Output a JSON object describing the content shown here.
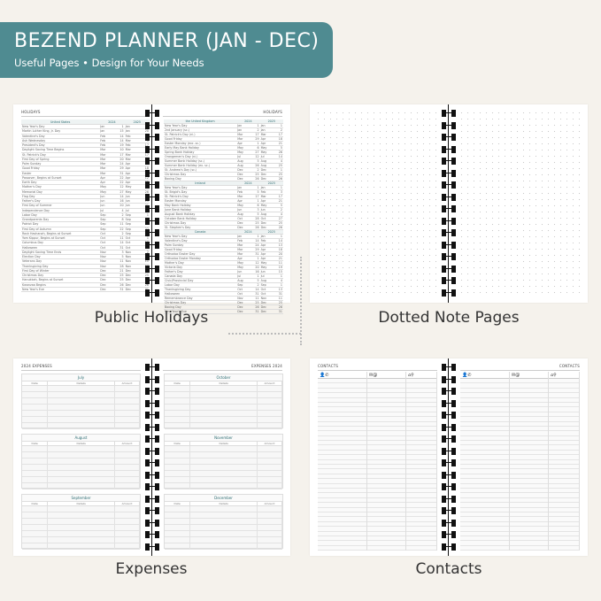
{
  "banner": {
    "title": "BEZEND PLANNER (JAN - DEC)",
    "subtitle": "Useful Pages  •  Design for Your Needs",
    "color": "#4f8b91"
  },
  "captions": {
    "holidays": "Public Holidays",
    "dotted": "Dotted Note Pages",
    "expenses": "Expenses",
    "contacts": "Contacts"
  },
  "holidays": {
    "left_title": "HOLIDAYS",
    "right_title": "HOLIDAYS",
    "years": [
      "2024",
      "2025"
    ],
    "left": [
      {
        "country": "United States",
        "rows": [
          [
            "New Year's Day",
            "Jan",
            "1",
            "Jan",
            "1"
          ],
          [
            "Martin Luther King, Jr. Day",
            "Jan",
            "15",
            "Jan",
            "20"
          ],
          [
            "Valentine's Day",
            "Feb",
            "14",
            "Feb",
            "14"
          ],
          [
            "Ash Wednesday",
            "Feb",
            "14",
            "Mar",
            "5"
          ],
          [
            "President's Day",
            "Feb",
            "19",
            "Feb",
            "17"
          ],
          [
            "Daylight Saving Time Begins",
            "Mar",
            "10",
            "Mar",
            "9"
          ],
          [
            "St. Patrick's Day",
            "Mar",
            "17",
            "Mar",
            "17"
          ],
          [
            "First Day of Spring",
            "Mar",
            "20",
            "Mar",
            "20"
          ],
          [
            "Palm Sunday",
            "Mar",
            "24",
            "Apr",
            "13"
          ],
          [
            "Good Friday",
            "Mar",
            "29",
            "Apr",
            "18"
          ],
          [
            "Easter",
            "Mar",
            "31",
            "Apr",
            "20"
          ],
          [
            "Passover, Begins at Sunset",
            "Apr",
            "22",
            "Apr",
            "12"
          ],
          [
            "Earth Day",
            "Apr",
            "22",
            "Apr",
            "22"
          ],
          [
            "Mother's Day",
            "May",
            "12",
            "May",
            "11"
          ],
          [
            "Memorial Day",
            "May",
            "27",
            "May",
            "26"
          ],
          [
            "Flag Day",
            "Jun",
            "14",
            "Jun",
            "14"
          ],
          [
            "Father's Day",
            "Jun",
            "16",
            "Jun",
            "15"
          ],
          [
            "First Day of Summer",
            "Jun",
            "20",
            "Jun",
            "21"
          ],
          [
            "Independence Day",
            "Jul",
            "4",
            "Jul",
            "4"
          ],
          [
            "Labor Day",
            "Sep",
            "2",
            "Sep",
            "1"
          ],
          [
            "Grandparents Day",
            "Sep",
            "8",
            "Sep",
            "7"
          ],
          [
            "Patriot Day",
            "Sep",
            "11",
            "Sep",
            "11"
          ],
          [
            "First Day of Autumn",
            "Sep",
            "22",
            "Sep",
            "22"
          ],
          [
            "Rosh Hashanah, Begins at Sunset",
            "Oct",
            "2",
            "Sep",
            "22"
          ],
          [
            "Yom Kippur, Begins at Sunset",
            "Oct",
            "11",
            "Oct",
            "1"
          ],
          [
            "Columbus Day",
            "Oct",
            "14",
            "Oct",
            "13"
          ],
          [
            "Halloween",
            "Oct",
            "31",
            "Oct",
            "31"
          ],
          [
            "Daylight Saving Time Ends",
            "Nov",
            "3",
            "Nov",
            "2"
          ],
          [
            "Election Day",
            "Nov",
            "5",
            "Nov",
            "4"
          ],
          [
            "Veterans Day",
            "Nov",
            "11",
            "Nov",
            "11"
          ],
          [
            "Thanksgiving Day",
            "Nov",
            "28",
            "Nov",
            "27"
          ],
          [
            "First Day of Winter",
            "Dec",
            "21",
            "Dec",
            "21"
          ],
          [
            "Christmas Day",
            "Dec",
            "25",
            "Dec",
            "25"
          ],
          [
            "Hanukkah, Begins at Sunset",
            "Dec",
            "25",
            "Dec",
            "14"
          ],
          [
            "Kwanzaa Begins",
            "Dec",
            "26",
            "Dec",
            "26"
          ],
          [
            "New Year's Eve",
            "Dec",
            "31",
            "Dec",
            "31"
          ]
        ]
      }
    ],
    "right": [
      {
        "country": "the United Kingdom",
        "rows": [
          [
            "New Year's Day",
            "Jan",
            "1",
            "Jan",
            "1"
          ],
          [
            "2nd January (sc.)",
            "Jan",
            "2",
            "Jan",
            "2"
          ],
          [
            "St. Patrick's Day (ni.)",
            "Mar",
            "17",
            "Mar",
            "17"
          ],
          [
            "Good Friday",
            "Mar",
            "29",
            "Apr",
            "18"
          ],
          [
            "Easter Monday (exc. sc.)",
            "Apr",
            "1",
            "Apr",
            "21"
          ],
          [
            "Early May Bank Holiday",
            "May",
            "6",
            "May",
            "5"
          ],
          [
            "Spring Bank Holiday",
            "May",
            "27",
            "May",
            "26"
          ],
          [
            "Orangemen's Day (ni.)",
            "Jul",
            "12",
            "Jul",
            "14"
          ],
          [
            "Summer Bank Holiday (sc.)",
            "Aug",
            "5",
            "Aug",
            "4"
          ],
          [
            "Summer Bank Holiday (ex. sc.)",
            "Aug",
            "26",
            "Aug",
            "25"
          ],
          [
            "St. Andrew's Day (sc.)",
            "Dec",
            "2",
            "Dec",
            "1"
          ],
          [
            "Christmas Day",
            "Dec",
            "25",
            "Dec",
            "25"
          ],
          [
            "Boxing Day",
            "Dec",
            "26",
            "Dec",
            "26"
          ]
        ]
      },
      {
        "country": "Ireland",
        "rows": [
          [
            "New Year's Day",
            "Jan",
            "1",
            "Jan",
            "1"
          ],
          [
            "St. Brigid's Day",
            "Feb",
            "5",
            "Feb",
            "3"
          ],
          [
            "St. Patrick's Day",
            "Mar",
            "17",
            "Mar",
            "17"
          ],
          [
            "Easter Monday",
            "Apr",
            "1",
            "Apr",
            "21"
          ],
          [
            "May Bank Holiday",
            "May",
            "6",
            "May",
            "5"
          ],
          [
            "June Bank Holiday",
            "Jun",
            "3",
            "Jun",
            "2"
          ],
          [
            "August Bank Holiday",
            "Aug",
            "5",
            "Aug",
            "4"
          ],
          [
            "October Bank Holiday",
            "Oct",
            "28",
            "Oct",
            "27"
          ],
          [
            "Christmas Day",
            "Dec",
            "25",
            "Dec",
            "25"
          ],
          [
            "St. Stephen's Day",
            "Dec",
            "26",
            "Dec",
            "26"
          ]
        ]
      },
      {
        "country": "Canada",
        "rows": [
          [
            "New Year's Day",
            "Jan",
            "1",
            "Jan",
            "1"
          ],
          [
            "Valentine's Day",
            "Feb",
            "14",
            "Feb",
            "14"
          ],
          [
            "Palm Sunday",
            "Mar",
            "24",
            "Apr",
            "13"
          ],
          [
            "Good Friday",
            "Mar",
            "29",
            "Apr",
            "18"
          ],
          [
            "Orthodox Easter Day",
            "Mar",
            "31",
            "Apr",
            "20"
          ],
          [
            "Orthodox Easter Monday",
            "Apr",
            "1",
            "Apr",
            "21"
          ],
          [
            "Mother's Day",
            "May",
            "12",
            "May",
            "11"
          ],
          [
            "Victoria Day",
            "May",
            "20",
            "May",
            "19"
          ],
          [
            "Father's Day",
            "Jun",
            "16",
            "Jun",
            "15"
          ],
          [
            "Canada Day",
            "Jul",
            "1",
            "Jul",
            "1"
          ],
          [
            "Civic/Provincial Day",
            "Aug",
            "5",
            "Aug",
            "4"
          ],
          [
            "Labor Day",
            "Sep",
            "2",
            "Sep",
            "1"
          ],
          [
            "Thanksgiving Day",
            "Oct",
            "14",
            "Oct",
            "13"
          ],
          [
            "Halloween",
            "Oct",
            "31",
            "Oct",
            "31"
          ],
          [
            "Remembrance Day",
            "Nov",
            "11",
            "Nov",
            "11"
          ],
          [
            "Christmas Day",
            "Dec",
            "25",
            "Dec",
            "25"
          ],
          [
            "Boxing Day",
            "Dec",
            "26",
            "Dec",
            "26"
          ],
          [
            "New Year's Eve",
            "Dec",
            "31",
            "Dec",
            "31"
          ]
        ]
      }
    ]
  },
  "expenses": {
    "left_title": "2024 EXPENSES",
    "right_title": "EXPENSES 2024",
    "columns": [
      "Date",
      "Details",
      "Amount"
    ],
    "left_months": [
      "July",
      "August",
      "September"
    ],
    "right_months": [
      "October",
      "November",
      "December"
    ]
  },
  "contacts": {
    "left_title": "CONTACTS",
    "right_title": "CONTACTS",
    "column_icons": [
      "person-phone-icon",
      "envelope-at-icon",
      "home-location-icon"
    ],
    "column_glyphs": [
      "👤✆",
      "✉@",
      "⌂⚲"
    ]
  }
}
